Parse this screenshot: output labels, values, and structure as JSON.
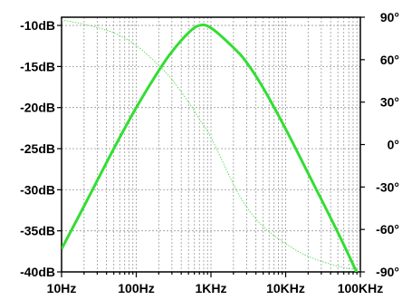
{
  "chart_data": {
    "type": "line",
    "title": "",
    "xlabel": "",
    "ylabel": "",
    "y2label": "",
    "x_scale": "log",
    "xlim": [
      10,
      100000
    ],
    "ylim": [
      -40,
      -9
    ],
    "y2lim": [
      -90,
      90
    ],
    "grid": true,
    "x_ticks": [
      {
        "value": 10,
        "label": "10Hz"
      },
      {
        "value": 100,
        "label": "100Hz"
      },
      {
        "value": 1000,
        "label": "1KHz"
      },
      {
        "value": 10000,
        "label": "10KHz"
      },
      {
        "value": 100000,
        "label": "100KHz"
      }
    ],
    "y_ticks": [
      {
        "value": -10,
        "label": "-10dB"
      },
      {
        "value": -15,
        "label": "-15dB"
      },
      {
        "value": -20,
        "label": "-20dB"
      },
      {
        "value": -25,
        "label": "-25dB"
      },
      {
        "value": -30,
        "label": "-30dB"
      },
      {
        "value": -35,
        "label": "-35dB"
      },
      {
        "value": -40,
        "label": "-40dB"
      }
    ],
    "y2_ticks": [
      {
        "value": 90,
        "label": "90°"
      },
      {
        "value": 60,
        "label": "60°"
      },
      {
        "value": 30,
        "label": "30°"
      },
      {
        "value": 0,
        "label": "0°"
      },
      {
        "value": -30,
        "label": "-30°"
      },
      {
        "value": -60,
        "label": "-60°"
      },
      {
        "value": -90,
        "label": "-90°"
      }
    ],
    "series": [
      {
        "axis": "left",
        "color": "#33dd33",
        "style": "solid",
        "x": [
          10,
          20,
          50,
          100,
          200,
          300,
          500,
          700,
          1000,
          2000,
          3000,
          5000,
          10000,
          20000,
          50000,
          100000
        ],
        "values": [
          -37.2,
          -32.0,
          -25.0,
          -20.0,
          -15.5,
          -13.2,
          -10.9,
          -10.0,
          -10.3,
          -12.7,
          -14.5,
          -17.6,
          -22.6,
          -28.0,
          -35.2,
          -41.0
        ]
      },
      {
        "axis": "right",
        "color": "#55dd55",
        "style": "dotted",
        "x": [
          10,
          20,
          50,
          100,
          200,
          300,
          500,
          700,
          1000,
          2000,
          3000,
          5000,
          10000,
          20000,
          50000,
          100000
        ],
        "values": [
          88,
          85,
          79,
          70,
          56,
          46,
          30,
          18,
          5,
          -28,
          -44,
          -58,
          -70,
          -79,
          -86,
          -89
        ]
      }
    ]
  }
}
